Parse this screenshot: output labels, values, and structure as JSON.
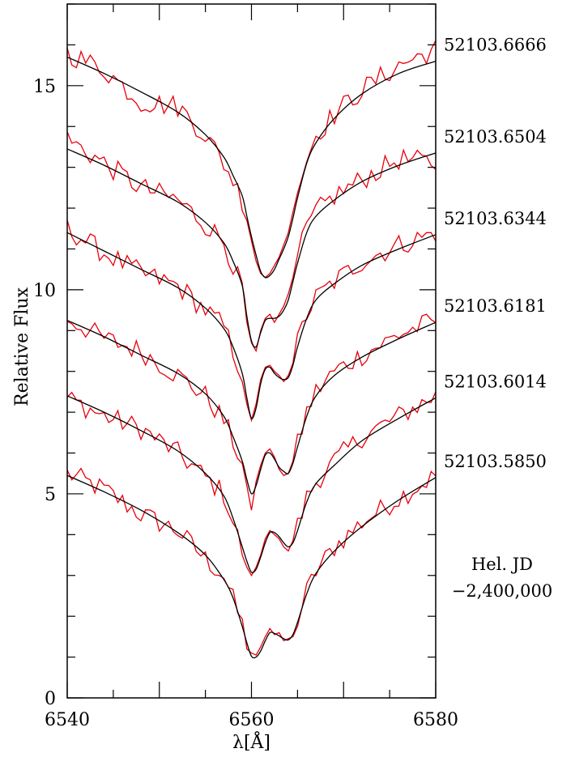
{
  "chart_data": {
    "type": "line",
    "xlabel": "λ[Å]",
    "ylabel": "Relative Flux",
    "xlim": [
      6540,
      6580
    ],
    "ylim": [
      0,
      17
    ],
    "x_ticks": [
      6540,
      6560,
      6580
    ],
    "y_ticks": [
      0,
      5,
      10,
      15
    ],
    "grid": false,
    "colors": {
      "observed": "#e8000b",
      "model": "#000000"
    },
    "jd_note": [
      "Hel. JD",
      "−2,400,000"
    ],
    "profile_x": [
      6540,
      6544,
      6548,
      6552,
      6555,
      6557,
      6558,
      6559,
      6559.5,
      6560,
      6560.5,
      6561,
      6561.5,
      6562,
      6562.5,
      6563,
      6563.5,
      6564,
      6564.5,
      6565,
      6566,
      6567,
      6569,
      6572,
      6576,
      6580
    ],
    "series": [
      {
        "label": "52103.5850",
        "model": [
          5.45,
          5.05,
          4.6,
          4.05,
          3.5,
          2.9,
          2.45,
          1.75,
          1.35,
          1.02,
          1.0,
          1.15,
          1.4,
          1.6,
          1.58,
          1.52,
          1.45,
          1.42,
          1.55,
          1.85,
          2.55,
          3.05,
          3.6,
          4.2,
          4.85,
          5.4
        ],
        "observed": [
          5.5,
          5.1,
          4.5,
          4.1,
          3.4,
          3.0,
          2.4,
          1.8,
          1.2,
          1.1,
          1.05,
          1.25,
          1.5,
          1.7,
          1.55,
          1.6,
          1.4,
          1.45,
          1.5,
          1.9,
          2.6,
          3.1,
          3.7,
          4.3,
          4.9,
          5.45
        ]
      },
      {
        "label": "52103.6014",
        "model": [
          7.4,
          7.0,
          6.55,
          6.05,
          5.5,
          4.95,
          4.4,
          3.7,
          3.35,
          3.08,
          3.15,
          3.45,
          3.8,
          4.05,
          4.05,
          3.95,
          3.8,
          3.7,
          3.8,
          4.1,
          4.8,
          5.25,
          5.7,
          6.3,
          6.85,
          7.35
        ],
        "observed": [
          7.35,
          6.9,
          6.6,
          6.0,
          5.4,
          5.0,
          4.3,
          3.6,
          3.2,
          3.0,
          3.2,
          3.5,
          3.9,
          4.1,
          4.0,
          3.9,
          3.7,
          3.6,
          3.85,
          4.2,
          4.9,
          5.3,
          5.8,
          6.4,
          6.9,
          7.4
        ]
      },
      {
        "label": "52103.6181",
        "model": [
          9.25,
          8.85,
          8.4,
          7.95,
          7.45,
          6.9,
          6.4,
          5.8,
          5.35,
          5.0,
          5.2,
          5.6,
          5.95,
          6.0,
          5.85,
          5.65,
          5.55,
          5.5,
          5.75,
          6.15,
          6.9,
          7.4,
          7.9,
          8.35,
          8.8,
          9.2
        ],
        "observed": [
          9.3,
          8.8,
          8.5,
          7.9,
          7.4,
          6.8,
          6.3,
          5.7,
          5.2,
          4.6,
          5.3,
          5.7,
          6.0,
          6.1,
          5.9,
          5.6,
          5.45,
          5.5,
          5.8,
          6.2,
          7.0,
          7.5,
          8.0,
          8.4,
          8.9,
          9.25
        ]
      },
      {
        "label": "52103.6344",
        "model": [
          11.4,
          10.95,
          10.5,
          10.05,
          9.55,
          9.05,
          8.6,
          7.95,
          7.35,
          6.85,
          7.1,
          7.7,
          8.05,
          8.1,
          7.95,
          7.85,
          7.8,
          7.85,
          8.15,
          8.6,
          9.3,
          9.75,
          10.15,
          10.6,
          11.0,
          11.35
        ],
        "observed": [
          11.5,
          10.9,
          10.4,
          10.1,
          9.5,
          9.1,
          8.5,
          7.9,
          7.2,
          6.8,
          7.2,
          7.8,
          8.1,
          8.15,
          8.0,
          7.9,
          7.75,
          7.9,
          8.2,
          8.7,
          9.4,
          9.8,
          10.2,
          10.7,
          11.1,
          11.4
        ]
      },
      {
        "label": "52103.6504",
        "model": [
          13.45,
          13.05,
          12.6,
          12.15,
          11.65,
          11.15,
          10.7,
          10.1,
          9.35,
          8.75,
          8.6,
          8.95,
          9.25,
          9.3,
          9.3,
          9.35,
          9.5,
          9.75,
          10.2,
          10.65,
          11.4,
          11.8,
          12.2,
          12.65,
          13.05,
          13.35
        ],
        "observed": [
          13.7,
          13.1,
          12.5,
          12.2,
          11.6,
          11.2,
          10.6,
          10.0,
          9.2,
          8.7,
          8.5,
          9.0,
          9.3,
          9.4,
          9.2,
          9.4,
          9.6,
          9.9,
          10.3,
          10.8,
          11.5,
          11.9,
          12.3,
          12.7,
          13.2,
          13.1
        ]
      },
      {
        "label": "52103.6666",
        "model": [
          15.7,
          15.3,
          14.85,
          14.35,
          13.8,
          13.25,
          12.8,
          12.3,
          11.8,
          11.3,
          10.85,
          10.45,
          10.3,
          10.35,
          10.5,
          10.75,
          11.0,
          11.3,
          11.75,
          12.25,
          13.1,
          13.6,
          14.2,
          14.8,
          15.3,
          15.6
        ],
        "observed": [
          15.8,
          15.4,
          14.6,
          14.5,
          13.8,
          13.1,
          12.7,
          12.2,
          11.7,
          11.2,
          10.7,
          10.4,
          10.3,
          10.4,
          10.6,
          10.8,
          11.1,
          11.4,
          11.9,
          12.5,
          13.2,
          13.8,
          14.3,
          14.9,
          15.5,
          15.9
        ]
      }
    ]
  }
}
